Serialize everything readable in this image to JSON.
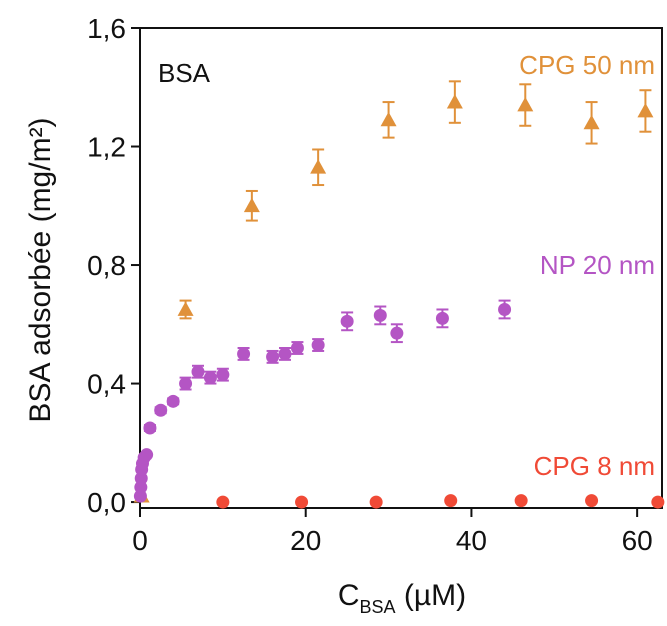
{
  "chart_data": {
    "type": "scatter",
    "title": "",
    "panel_label": "BSA",
    "xlabel": {
      "main": "C",
      "subscript": "BSA",
      "unit": " (µM)"
    },
    "ylabel": "BSA adsorbée (mg/m²)",
    "xlim": [
      0,
      63
    ],
    "ylim": [
      -0.02,
      1.6
    ],
    "x_ticks": [
      0,
      20,
      40,
      60
    ],
    "x_tick_labels": [
      "0",
      "20",
      "40",
      "60"
    ],
    "y_ticks": [
      0.0,
      0.4,
      0.8,
      1.2,
      1.6
    ],
    "y_tick_labels": [
      "0,0",
      "0,4",
      "0,8",
      "1,2",
      "1,6"
    ],
    "grid": false,
    "legend": "series labels printed inside plot area",
    "series": [
      {
        "name": "CPG 50 nm",
        "marker": "triangle",
        "color": "#e0913a",
        "points": [
          {
            "x": 0.2,
            "y": 0.02,
            "err": 0
          },
          {
            "x": 5.5,
            "y": 0.65,
            "err": 0.03
          },
          {
            "x": 13.5,
            "y": 1.0,
            "err": 0.05
          },
          {
            "x": 21.5,
            "y": 1.13,
            "err": 0.06
          },
          {
            "x": 30.0,
            "y": 1.29,
            "err": 0.06
          },
          {
            "x": 38.0,
            "y": 1.35,
            "err": 0.07
          },
          {
            "x": 46.5,
            "y": 1.34,
            "err": 0.07
          },
          {
            "x": 54.5,
            "y": 1.28,
            "err": 0.07
          },
          {
            "x": 61.0,
            "y": 1.32,
            "err": 0.07
          }
        ]
      },
      {
        "name": "NP 20 nm",
        "marker": "circle",
        "color": "#b455c4",
        "points": [
          {
            "x": 0.05,
            "y": 0.02,
            "err": 0
          },
          {
            "x": 0.1,
            "y": 0.05,
            "err": 0
          },
          {
            "x": 0.15,
            "y": 0.08,
            "err": 0
          },
          {
            "x": 0.2,
            "y": 0.11,
            "err": 0
          },
          {
            "x": 0.3,
            "y": 0.13,
            "err": 0
          },
          {
            "x": 0.5,
            "y": 0.15,
            "err": 0
          },
          {
            "x": 0.8,
            "y": 0.16,
            "err": 0
          },
          {
            "x": 1.2,
            "y": 0.25,
            "err": 0.01
          },
          {
            "x": 2.5,
            "y": 0.31,
            "err": 0.01
          },
          {
            "x": 4.0,
            "y": 0.34,
            "err": 0.01
          },
          {
            "x": 5.5,
            "y": 0.4,
            "err": 0.02
          },
          {
            "x": 7.0,
            "y": 0.44,
            "err": 0.02
          },
          {
            "x": 8.5,
            "y": 0.42,
            "err": 0.02
          },
          {
            "x": 10.0,
            "y": 0.43,
            "err": 0.02
          },
          {
            "x": 12.5,
            "y": 0.5,
            "err": 0.02
          },
          {
            "x": 16.0,
            "y": 0.49,
            "err": 0.02
          },
          {
            "x": 17.5,
            "y": 0.5,
            "err": 0.02
          },
          {
            "x": 19.0,
            "y": 0.52,
            "err": 0.02
          },
          {
            "x": 21.5,
            "y": 0.53,
            "err": 0.02
          },
          {
            "x": 25.0,
            "y": 0.61,
            "err": 0.03
          },
          {
            "x": 29.0,
            "y": 0.63,
            "err": 0.03
          },
          {
            "x": 31.0,
            "y": 0.57,
            "err": 0.03
          },
          {
            "x": 36.5,
            "y": 0.62,
            "err": 0.03
          },
          {
            "x": 44.0,
            "y": 0.65,
            "err": 0.03
          }
        ]
      },
      {
        "name": "CPG 8 nm",
        "marker": "circle",
        "color": "#f04a36",
        "points": [
          {
            "x": 10.0,
            "y": 0.0,
            "err": 0
          },
          {
            "x": 19.5,
            "y": 0.0,
            "err": 0
          },
          {
            "x": 28.5,
            "y": 0.0,
            "err": 0
          },
          {
            "x": 37.5,
            "y": 0.005,
            "err": 0
          },
          {
            "x": 46.0,
            "y": 0.005,
            "err": 0
          },
          {
            "x": 54.5,
            "y": 0.005,
            "err": 0
          },
          {
            "x": 62.5,
            "y": 0.0,
            "err": 0
          }
        ]
      }
    ]
  }
}
